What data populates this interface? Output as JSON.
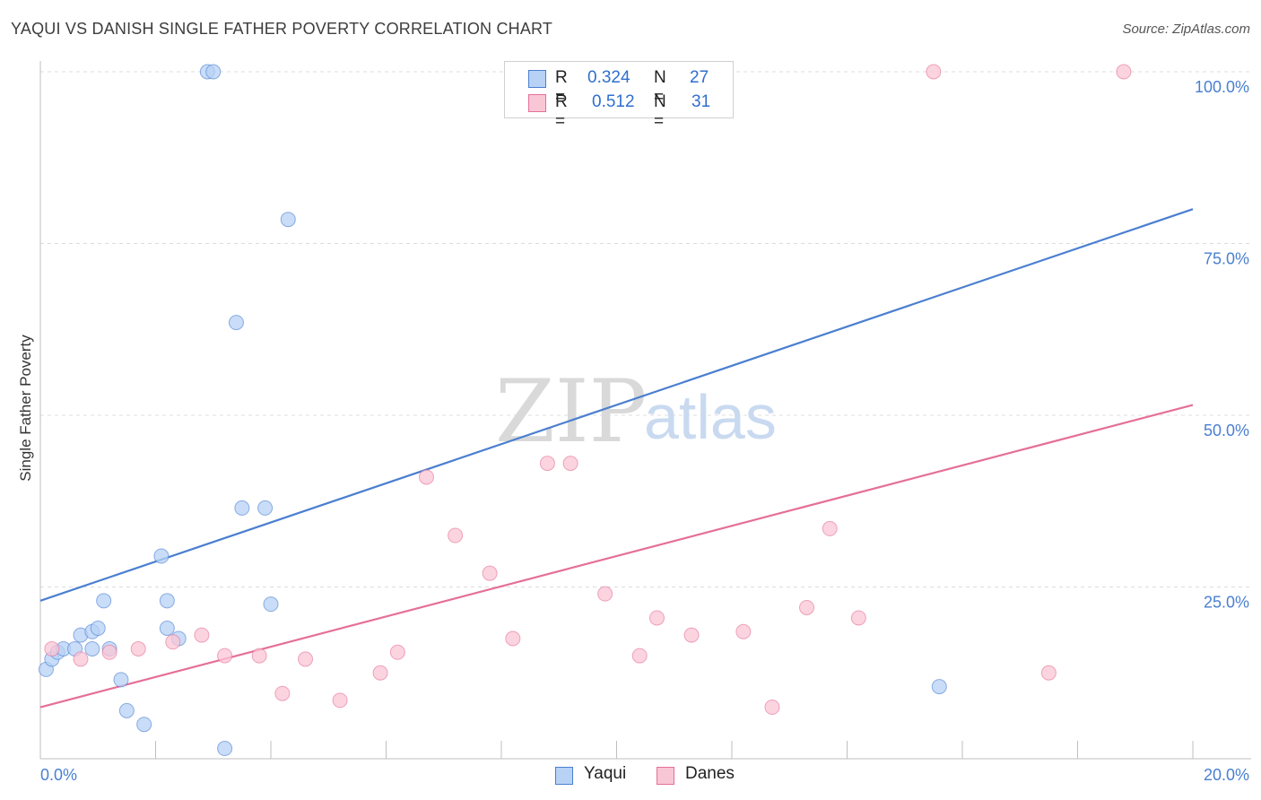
{
  "header": {
    "title": "YAQUI VS DANISH SINGLE FATHER POVERTY CORRELATION CHART",
    "source": "Source: ZipAtlas.com"
  },
  "watermark": {
    "zip": "ZIP",
    "atlas": "atlas"
  },
  "legend_stats": [
    {
      "r_label": "R =",
      "r_value": "0.324",
      "n_label": "N =",
      "n_value": "27",
      "color": "#4a7fd0"
    },
    {
      "r_label": "R =",
      "r_value": "0.512",
      "n_label": "N =",
      "n_value": "31",
      "color": "#e56f98"
    }
  ],
  "chart_data": {
    "type": "scatter",
    "title": "YAQUI VS DANISH SINGLE FATHER POVERTY CORRELATION CHART",
    "xlabel": "",
    "ylabel": "Single Father Poverty",
    "xlim": [
      0,
      20
    ],
    "ylim": [
      0,
      100
    ],
    "x_tick_labels": [
      "0.0%",
      "20.0%"
    ],
    "y_ticks": [
      25,
      50,
      75,
      100
    ],
    "y_tick_labels": [
      "25.0%",
      "50.0%",
      "75.0%",
      "100.0%"
    ],
    "grid": true,
    "series": [
      {
        "name": "Yaqui",
        "color": "#4a7fd0",
        "fill": "#b7d2f5",
        "points": [
          [
            0.1,
            13
          ],
          [
            0.2,
            14.5
          ],
          [
            0.3,
            15.5
          ],
          [
            0.4,
            16
          ],
          [
            0.6,
            16
          ],
          [
            0.7,
            18
          ],
          [
            0.9,
            18.5
          ],
          [
            1.0,
            19
          ],
          [
            1.1,
            23
          ],
          [
            1.2,
            16
          ],
          [
            1.4,
            11.5
          ],
          [
            1.5,
            7
          ],
          [
            1.8,
            5
          ],
          [
            2.1,
            29.5
          ],
          [
            2.2,
            23
          ],
          [
            2.2,
            19
          ],
          [
            2.4,
            17.5
          ],
          [
            2.9,
            100
          ],
          [
            3.0,
            100
          ],
          [
            3.2,
            1.5
          ],
          [
            3.4,
            63.5
          ],
          [
            3.5,
            36.5
          ],
          [
            3.9,
            36.5
          ],
          [
            4.0,
            22.5
          ],
          [
            4.3,
            78.5
          ],
          [
            15.6,
            10.5
          ],
          [
            0.9,
            16
          ]
        ],
        "trend": {
          "x": [
            0,
            20
          ],
          "y": [
            23,
            80
          ]
        }
      },
      {
        "name": "Danes",
        "color": "#e56f98",
        "fill": "#f9c6d6",
        "points": [
          [
            0.2,
            16
          ],
          [
            0.7,
            14.5
          ],
          [
            1.2,
            15.5
          ],
          [
            1.7,
            16
          ],
          [
            2.3,
            17
          ],
          [
            2.8,
            18
          ],
          [
            3.2,
            15
          ],
          [
            3.8,
            15
          ],
          [
            4.2,
            9.5
          ],
          [
            4.6,
            14.5
          ],
          [
            5.2,
            8.5
          ],
          [
            5.9,
            12.5
          ],
          [
            6.2,
            15.5
          ],
          [
            6.7,
            41
          ],
          [
            7.2,
            32.5
          ],
          [
            7.8,
            27
          ],
          [
            8.2,
            17.5
          ],
          [
            8.8,
            43
          ],
          [
            9.2,
            43
          ],
          [
            9.8,
            24
          ],
          [
            10.4,
            15
          ],
          [
            10.7,
            20.5
          ],
          [
            11.3,
            18
          ],
          [
            12.2,
            18.5
          ],
          [
            12.7,
            7.5
          ],
          [
            13.3,
            22
          ],
          [
            13.7,
            33.5
          ],
          [
            14.2,
            20.5
          ],
          [
            15.5,
            100
          ],
          [
            17.5,
            12.5
          ],
          [
            18.8,
            100
          ]
        ],
        "trend": {
          "x": [
            0,
            20
          ],
          "y": [
            7.5,
            51.5
          ]
        }
      }
    ]
  }
}
